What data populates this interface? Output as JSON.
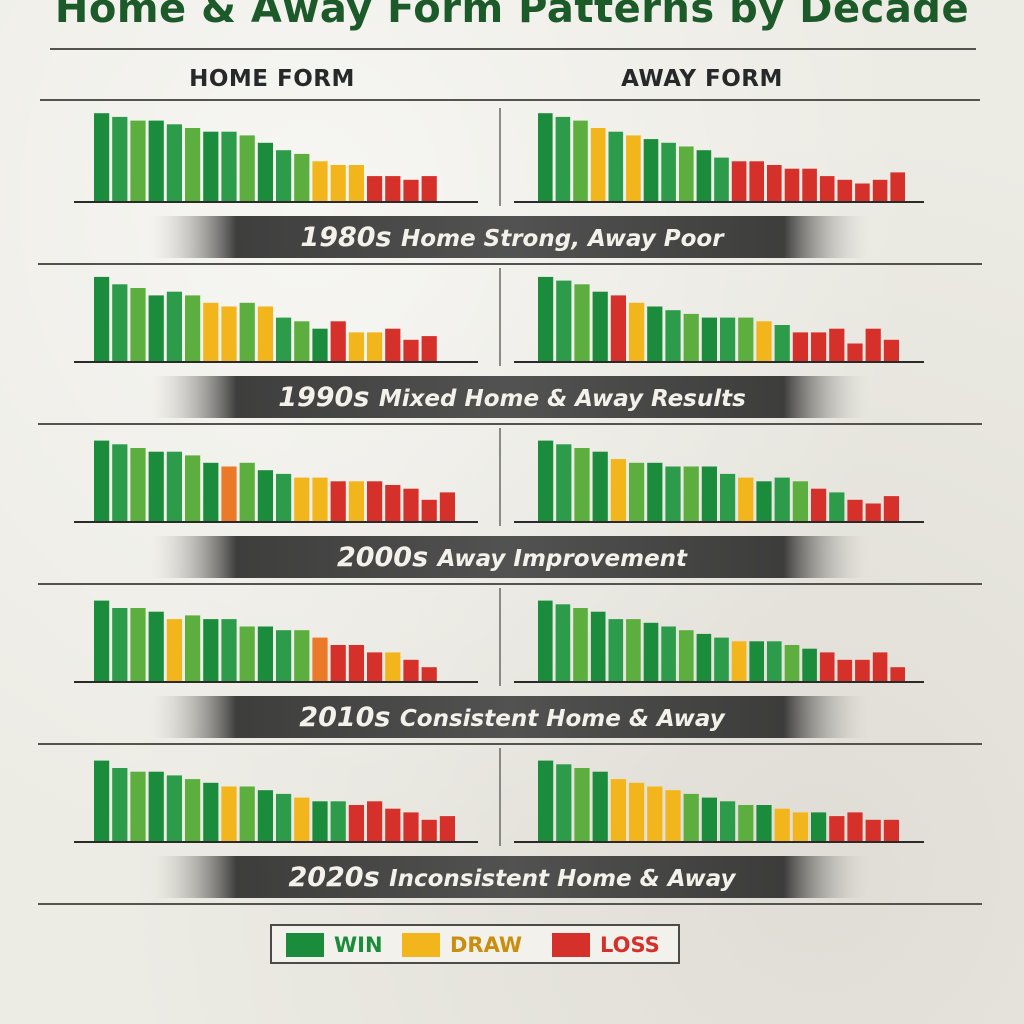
{
  "title": "Home & Away Form Patterns by Decade",
  "columns": {
    "home": "HOME FORM",
    "away": "AWAY FORM"
  },
  "colors": {
    "win_dark": "#1b8c3c",
    "win": "#2c9c4a",
    "win_light": "#5cae3e",
    "draw": "#f2b51b",
    "draw_orange": "#ea7a28",
    "loss": "#d6302a",
    "title": "#1d5a2a"
  },
  "legend": [
    {
      "label": "WIN",
      "color": "#1b8c3c"
    },
    {
      "label": "DRAW",
      "color": "#f2b51b"
    },
    {
      "label": "LOSS",
      "color": "#d6302a"
    }
  ],
  "chart_data": [
    {
      "type": "bar",
      "decade": "1980s",
      "description": "Home Strong, Away Poor",
      "home": {
        "values": [
          24,
          23,
          22,
          22,
          21,
          20,
          19,
          19,
          18,
          16,
          14,
          13,
          11,
          10,
          10,
          7,
          7,
          6,
          7
        ],
        "results": [
          "W",
          "W",
          "W",
          "W",
          "W",
          "W",
          "W",
          "W",
          "W",
          "W",
          "W",
          "W",
          "D",
          "D",
          "D",
          "L",
          "L",
          "L",
          "L"
        ]
      },
      "away": {
        "values": [
          24,
          23,
          22,
          20,
          19,
          18,
          17,
          16,
          15,
          14,
          12,
          11,
          11,
          10,
          9,
          9,
          7,
          6,
          5,
          6,
          8
        ],
        "results": [
          "W",
          "W",
          "W",
          "D",
          "W",
          "D",
          "W",
          "W",
          "W",
          "W",
          "W",
          "L",
          "L",
          "L",
          "L",
          "L",
          "L",
          "L",
          "L",
          "L",
          "L"
        ]
      }
    },
    {
      "type": "bar",
      "decade": "1990s",
      "description": "Mixed Home & Away Results",
      "home": {
        "values": [
          23,
          21,
          20,
          18,
          19,
          18,
          16,
          15,
          16,
          15,
          12,
          11,
          9,
          11,
          8,
          8,
          9,
          6,
          7
        ],
        "results": [
          "W",
          "W",
          "W",
          "W",
          "W",
          "W",
          "D",
          "D",
          "W",
          "D",
          "W",
          "W",
          "W",
          "L",
          "D",
          "D",
          "L",
          "L",
          "L"
        ]
      },
      "away": {
        "values": [
          23,
          22,
          21,
          19,
          18,
          16,
          15,
          14,
          13,
          12,
          12,
          12,
          11,
          10,
          8,
          8,
          9,
          5,
          9,
          6
        ],
        "results": [
          "W",
          "W",
          "W",
          "W",
          "L",
          "D",
          "W",
          "W",
          "W",
          "W",
          "W",
          "W",
          "D",
          "W",
          "L",
          "L",
          "L",
          "L",
          "L",
          "L"
        ]
      }
    },
    {
      "type": "bar",
      "decade": "2000s",
      "description": "Away Improvement",
      "home": {
        "values": [
          22,
          21,
          20,
          19,
          19,
          18,
          16,
          15,
          16,
          14,
          13,
          12,
          12,
          11,
          11,
          11,
          10,
          9,
          6,
          8
        ],
        "results": [
          "W",
          "W",
          "W",
          "W",
          "W",
          "W",
          "W",
          "O",
          "W",
          "W",
          "W",
          "D",
          "D",
          "L",
          "D",
          "L",
          "L",
          "L",
          "L",
          "L"
        ]
      },
      "away": {
        "values": [
          22,
          21,
          20,
          19,
          17,
          16,
          16,
          15,
          15,
          15,
          13,
          12,
          11,
          12,
          11,
          9,
          8,
          6,
          5,
          7
        ],
        "results": [
          "W",
          "W",
          "W",
          "W",
          "D",
          "W",
          "W",
          "W",
          "W",
          "W",
          "W",
          "D",
          "W",
          "W",
          "W",
          "L",
          "W",
          "L",
          "L",
          "L"
        ]
      }
    },
    {
      "type": "bar",
      "decade": "2010s",
      "description": "Consistent Home & Away",
      "home": {
        "values": [
          22,
          20,
          20,
          19,
          17,
          18,
          17,
          17,
          15,
          15,
          14,
          14,
          12,
          10,
          10,
          8,
          8,
          6,
          4
        ],
        "results": [
          "W",
          "W",
          "W",
          "W",
          "D",
          "W",
          "W",
          "W",
          "W",
          "W",
          "W",
          "W",
          "O",
          "L",
          "L",
          "L",
          "D",
          "L",
          "L"
        ]
      },
      "away": {
        "values": [
          22,
          21,
          20,
          19,
          17,
          17,
          16,
          15,
          14,
          13,
          12,
          11,
          11,
          11,
          10,
          9,
          8,
          6,
          6,
          8,
          4
        ],
        "results": [
          "W",
          "W",
          "W",
          "W",
          "W",
          "W",
          "W",
          "W",
          "W",
          "W",
          "W",
          "D",
          "W",
          "W",
          "W",
          "W",
          "L",
          "L",
          "L",
          "L",
          "L"
        ]
      }
    },
    {
      "type": "bar",
      "decade": "2020s",
      "description": "Inconsistent Home & Away",
      "home": {
        "values": [
          22,
          20,
          19,
          19,
          18,
          17,
          16,
          15,
          15,
          14,
          13,
          12,
          11,
          11,
          10,
          11,
          9,
          8,
          6,
          7
        ],
        "results": [
          "W",
          "W",
          "W",
          "W",
          "W",
          "W",
          "W",
          "D",
          "W",
          "W",
          "W",
          "D",
          "W",
          "W",
          "L",
          "L",
          "L",
          "L",
          "L",
          "L"
        ]
      },
      "away": {
        "values": [
          22,
          21,
          20,
          19,
          17,
          16,
          15,
          14,
          13,
          12,
          11,
          10,
          10,
          9,
          8,
          8,
          7,
          8,
          6,
          6
        ],
        "results": [
          "W",
          "W",
          "W",
          "W",
          "D",
          "D",
          "D",
          "D",
          "W",
          "W",
          "W",
          "W",
          "W",
          "D",
          "D",
          "W",
          "L",
          "L",
          "L",
          "L"
        ]
      }
    }
  ]
}
